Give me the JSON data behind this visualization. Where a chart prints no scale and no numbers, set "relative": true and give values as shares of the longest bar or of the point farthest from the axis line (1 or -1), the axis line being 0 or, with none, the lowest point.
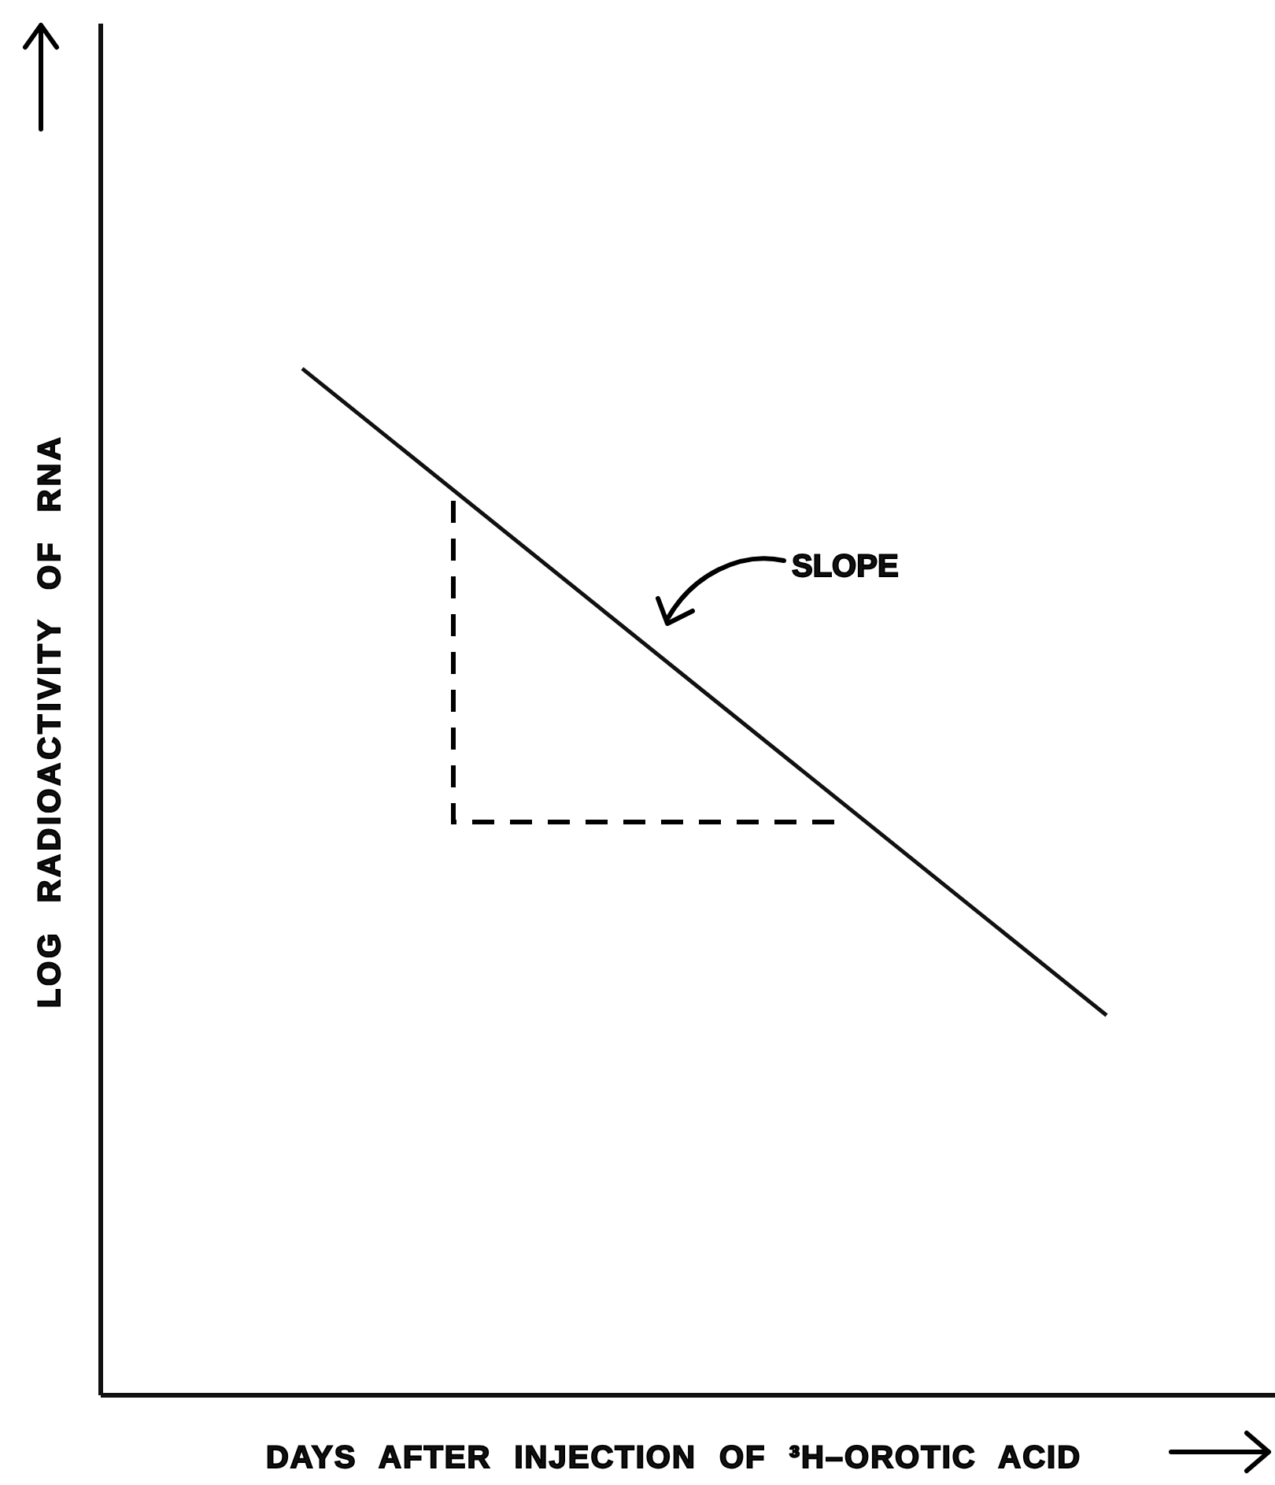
{
  "chart_data": {
    "type": "line",
    "relative": true,
    "xlabel": "DAYS AFTER INJECTION OF ³H–OROTIC ACID",
    "ylabel": "LOG RADIOACTIVITY OF RNA",
    "categories": [
      null,
      null
    ],
    "series": [
      {
        "color": "#111111",
        "values": [
          1,
          0.37
        ]
      }
    ],
    "annotations": [
      "SLOPE"
    ],
    "marker": "none",
    "line_style": "solid",
    "legend": false,
    "grid": false
  }
}
